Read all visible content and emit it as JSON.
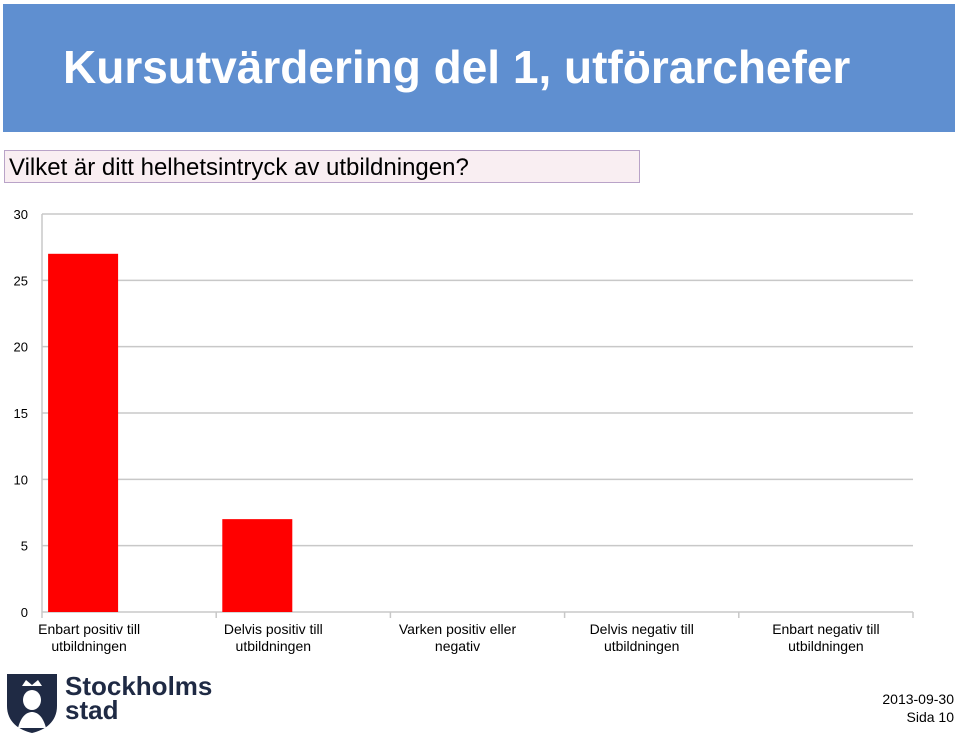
{
  "slide": {
    "title": "Kursutvärdering del 1, utförarchefer",
    "question": "Vilket är ditt helhetsintryck av utbildningen?"
  },
  "chart_data": {
    "type": "bar",
    "categories": [
      "Enbart positiv till utbildningen",
      "Delvis positiv till utbildningen",
      "Varken positiv eller negativ",
      "Delvis negativ till utbildningen",
      "Enbart negativ till utbildningen"
    ],
    "values": [
      27,
      7,
      0,
      0,
      0
    ],
    "ylim": [
      0,
      30
    ],
    "yticks": [
      0,
      5,
      10,
      15,
      20,
      25,
      30
    ],
    "grid": true,
    "bar_color": "#ff0000"
  },
  "logo": {
    "line1": "Stockholms",
    "line2": "stad"
  },
  "footer": {
    "date": "2013-09-30",
    "page": "Sida 10"
  }
}
